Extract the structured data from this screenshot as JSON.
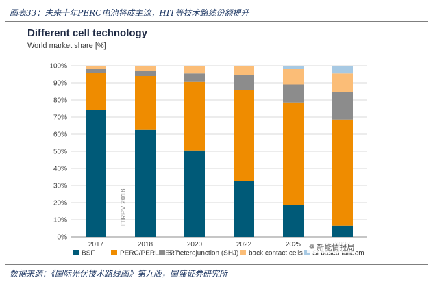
{
  "caption": "图表33：未来十年PERC电池将成主流，HIT等技术路线份额提升",
  "source": "数据来源：《国际光伏技术路线图》第九版，国盛证券研究所",
  "watermark": {
    "text": "新能情报局",
    "icon": "wechat-icon"
  },
  "chart_data": {
    "type": "bar",
    "stacked": true,
    "title": "Different cell technology",
    "ylabel": "World market share [%]",
    "xlabel": "",
    "categories": [
      "2017",
      "2018",
      "2020",
      "2022",
      "2025",
      "2028"
    ],
    "ylim": [
      0,
      100
    ],
    "yticks": [
      0,
      10,
      20,
      30,
      40,
      50,
      60,
      70,
      80,
      90,
      100
    ],
    "ytick_labels": [
      "0%",
      "10%",
      "20%",
      "30%",
      "40%",
      "50%",
      "60%",
      "70%",
      "80%",
      "90%",
      "100%"
    ],
    "grid": true,
    "legend_position": "bottom",
    "annotation": "ITRPV 2018",
    "series": [
      {
        "name": "BSF",
        "color": "#005a78",
        "values": [
          74,
          62.5,
          50.5,
          32.5,
          18.5,
          6.5
        ]
      },
      {
        "name": "PERC/PERL/PERT",
        "color": "#ef8c00",
        "values": [
          22,
          31.5,
          40,
          53.5,
          60,
          62
        ]
      },
      {
        "name": "Si-heterojunction (SHJ)",
        "color": "#8c8c8c",
        "values": [
          2,
          3,
          5,
          8.5,
          10.5,
          16
        ]
      },
      {
        "name": "back contact cells",
        "color": "#fbbd77",
        "values": [
          2,
          3,
          4.5,
          5.5,
          9,
          11
        ]
      },
      {
        "name": "Si-based tandem",
        "color": "#a7c9e3",
        "values": [
          0,
          0,
          0,
          0,
          2,
          4.5
        ]
      }
    ]
  }
}
